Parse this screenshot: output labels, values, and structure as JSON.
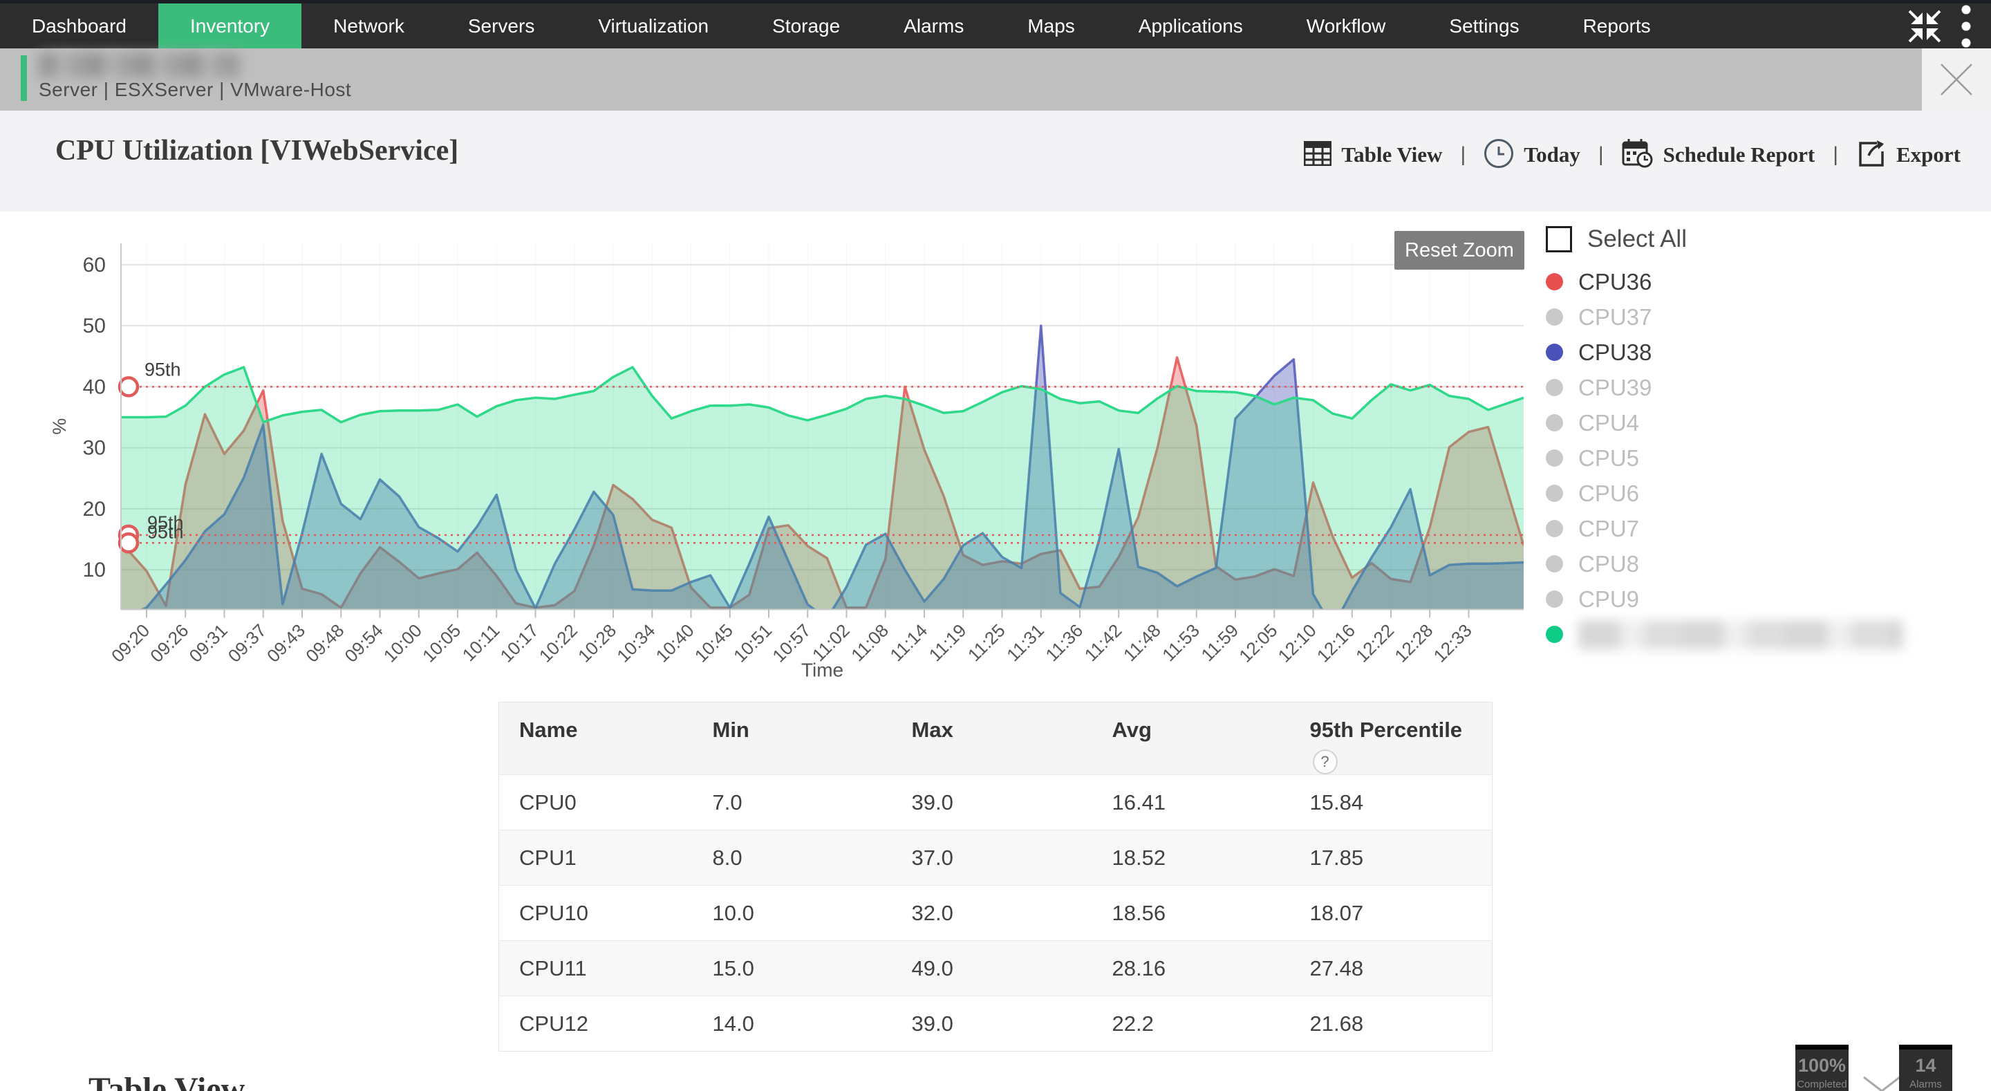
{
  "nav": {
    "items": [
      {
        "label": "Dashboard",
        "active": false
      },
      {
        "label": "Inventory",
        "active": true
      },
      {
        "label": "Network",
        "active": false
      },
      {
        "label": "Servers",
        "active": false
      },
      {
        "label": "Virtualization",
        "active": false
      },
      {
        "label": "Storage",
        "active": false
      },
      {
        "label": "Alarms",
        "active": false
      },
      {
        "label": "Maps",
        "active": false
      },
      {
        "label": "Applications",
        "active": false
      },
      {
        "label": "Workflow",
        "active": false
      },
      {
        "label": "Settings",
        "active": false
      },
      {
        "label": "Reports",
        "active": false
      }
    ]
  },
  "breadcrumb": {
    "title_redacted": "",
    "subtitle": "Server | ESXServer  | VMware-Host"
  },
  "header": {
    "title": "CPU Utilization [VIWebService]",
    "actions": [
      {
        "label": "Table View",
        "icon": "table-view-icon"
      },
      {
        "label": "Today",
        "icon": "clock-icon"
      },
      {
        "label": "Schedule Report",
        "icon": "schedule-calendar-icon"
      },
      {
        "label": "Export",
        "icon": "export-icon"
      }
    ]
  },
  "chart_data": {
    "type": "area",
    "title": "CPU Utilization [VIWebService]",
    "xlabel": "Time",
    "ylabel": "%",
    "ylim": [
      3.5,
      63.5
    ],
    "yticks": [
      10,
      20,
      30,
      40,
      50,
      60
    ],
    "grid": true,
    "legend_position": "right",
    "reset_zoom_label": "Reset Zoom",
    "x_tick_labels": [
      "09:20",
      "09:26",
      "09:31",
      "09:37",
      "09:43",
      "09:48",
      "09:54",
      "10:00",
      "10:05",
      "10:11",
      "10:17",
      "10:22",
      "10:28",
      "10:34",
      "10:40",
      "10:45",
      "10:51",
      "10:57",
      "11:02",
      "11:08",
      "11:14",
      "11:19",
      "11:25",
      "11:31",
      "11:36",
      "11:42",
      "11:48",
      "11:53",
      "11:59",
      "12:05",
      "12:10",
      "12:16",
      "12:22",
      "12:28",
      "12:33"
    ],
    "samples_per_tick_interval": 2,
    "first_sample_offset_ticks": -0.5,
    "series_draw_note": "green drawn last (on top)",
    "series": [
      {
        "name": "",
        "redacted": true,
        "color": "#2ed98a",
        "fill_opacity": 0.3,
        "values": [
          35.0,
          35.0,
          35.1,
          36.9,
          40.0,
          42.0,
          43.2,
          34.2,
          35.3,
          35.9,
          36.2,
          34.2,
          35.4,
          36.0,
          36.1,
          36.1,
          36.2,
          37.1,
          35.1,
          36.8,
          37.8,
          38.2,
          38.0,
          38.7,
          39.3,
          41.6,
          43.2,
          38.5,
          34.8,
          36.0,
          36.9,
          36.9,
          37.1,
          36.6,
          35.3,
          34.5,
          35.4,
          36.4,
          38.0,
          38.5,
          38.0,
          36.9,
          35.7,
          36.0,
          37.5,
          39.1,
          40.1,
          39.6,
          38.0,
          37.3,
          37.6,
          36.1,
          35.7,
          38.1,
          40.1,
          39.3,
          39.2,
          39.1,
          38.5,
          37.1,
          38.2,
          37.8,
          35.6,
          34.8,
          37.8,
          40.4,
          39.4,
          40.3,
          38.5,
          38.0,
          36.2,
          38.2
        ]
      },
      {
        "name": "CPU36",
        "redacted": false,
        "color": "#e85050",
        "fill_opacity": 0.36,
        "values": [
          14.5,
          9.8,
          4.1,
          24.0,
          35.5,
          29.0,
          32.8,
          39.4,
          18.0,
          6.9,
          6.0,
          3.8,
          9.4,
          13.7,
          11.3,
          8.6,
          9.4,
          10.1,
          12.8,
          9.0,
          4.5,
          3.8,
          4.2,
          6.5,
          14.0,
          23.9,
          21.6,
          18.2,
          16.9,
          7.1,
          3.8,
          3.8,
          5.9,
          16.8,
          17.3,
          13.9,
          11.9,
          3.8,
          3.8,
          11.8,
          40.0,
          29.7,
          22.1,
          12.4,
          10.8,
          11.4,
          11.0,
          12.6,
          13.2,
          6.9,
          7.2,
          12.1,
          18.6,
          30.1,
          44.8,
          33.6,
          10.6,
          8.4,
          8.9,
          10.1,
          9.0,
          24.3,
          15.5,
          8.7,
          11.1,
          8.5,
          8.0,
          17.0,
          30.1,
          32.6,
          33.4,
          14.0
        ]
      },
      {
        "name": "CPU38",
        "redacted": false,
        "color": "#5157ba",
        "fill_opacity": 0.4,
        "values": [
          2.0,
          3.8,
          7.6,
          11.6,
          16.3,
          19.1,
          25.1,
          33.8,
          4.4,
          16.0,
          29.0,
          20.8,
          18.3,
          24.8,
          22.0,
          17.0,
          15.2,
          13.0,
          17.1,
          22.3,
          10.0,
          3.7,
          11.0,
          16.6,
          22.8,
          19.0,
          6.8,
          6.6,
          6.6,
          8.0,
          9.1,
          3.8,
          11.0,
          18.7,
          11.5,
          4.3,
          2.0,
          7.2,
          14.1,
          15.9,
          10.0,
          4.8,
          8.5,
          14.0,
          16.0,
          12.1,
          10.3,
          50.0,
          6.2,
          3.9,
          15.0,
          29.8,
          10.5,
          9.5,
          7.3,
          8.9,
          10.3,
          34.8,
          38.2,
          41.8,
          44.5,
          6.0,
          0.5,
          6.5,
          12.0,
          17.0,
          23.2,
          9.1,
          10.8,
          11.0,
          11.0,
          11.2
        ]
      }
    ],
    "percentile_lines": [
      {
        "label": "95th",
        "value": 40.0
      },
      {
        "label": "95th",
        "value": 15.7
      },
      {
        "label": "95th",
        "value": 14.4
      }
    ],
    "legend": {
      "select_all_label": "Select All",
      "items": [
        {
          "label": "CPU36",
          "color": "#e85050",
          "selected": true,
          "redacted": false
        },
        {
          "label": "CPU37",
          "color": "#c9c9c9",
          "selected": false,
          "redacted": false
        },
        {
          "label": "CPU38",
          "color": "#4a51b8",
          "selected": true,
          "redacted": false
        },
        {
          "label": "CPU39",
          "color": "#c9c9c9",
          "selected": false,
          "redacted": false
        },
        {
          "label": "CPU4",
          "color": "#c9c9c9",
          "selected": false,
          "redacted": false
        },
        {
          "label": "CPU5",
          "color": "#c9c9c9",
          "selected": false,
          "redacted": false
        },
        {
          "label": "CPU6",
          "color": "#c9c9c9",
          "selected": false,
          "redacted": false
        },
        {
          "label": "CPU7",
          "color": "#c9c9c9",
          "selected": false,
          "redacted": false
        },
        {
          "label": "CPU8",
          "color": "#c9c9c9",
          "selected": false,
          "redacted": false
        },
        {
          "label": "CPU9",
          "color": "#c9c9c9",
          "selected": false,
          "redacted": false
        },
        {
          "label": "",
          "color": "#0ecb86",
          "selected": true,
          "redacted": true
        }
      ]
    }
  },
  "summary_table": {
    "columns": [
      "Name",
      "Min",
      "Max",
      "Avg",
      "95th Percentile"
    ],
    "help_icon_column": "95th Percentile",
    "help_icon_text": "?",
    "rows": [
      {
        "name": "CPU0",
        "min": "7.0",
        "max": "39.0",
        "avg": "16.41",
        "p95": "15.84"
      },
      {
        "name": "CPU1",
        "min": "8.0",
        "max": "37.0",
        "avg": "18.52",
        "p95": "17.85"
      },
      {
        "name": "CPU10",
        "min": "10.0",
        "max": "32.0",
        "avg": "18.56",
        "p95": "18.07"
      },
      {
        "name": "CPU11",
        "min": "15.0",
        "max": "49.0",
        "avg": "28.16",
        "p95": "27.48"
      },
      {
        "name": "CPU12",
        "min": "14.0",
        "max": "39.0",
        "avg": "22.2",
        "p95": "21.68"
      }
    ]
  },
  "bottom": {
    "section_title": "Table View",
    "completed_badge": {
      "value": "100%",
      "label": "Completed"
    },
    "alarms_badge": {
      "value": "14",
      "label": "Alarms"
    }
  },
  "colors": {
    "nav_bg": "#2d2d2d",
    "nav_active": "#3cbc7c",
    "breadcrumb_bg": "#bfbfbf",
    "title_strip_bg": "#f3f3f5",
    "percentile_line": "#e25b5b",
    "badge_bg": "#2e2e2e"
  }
}
